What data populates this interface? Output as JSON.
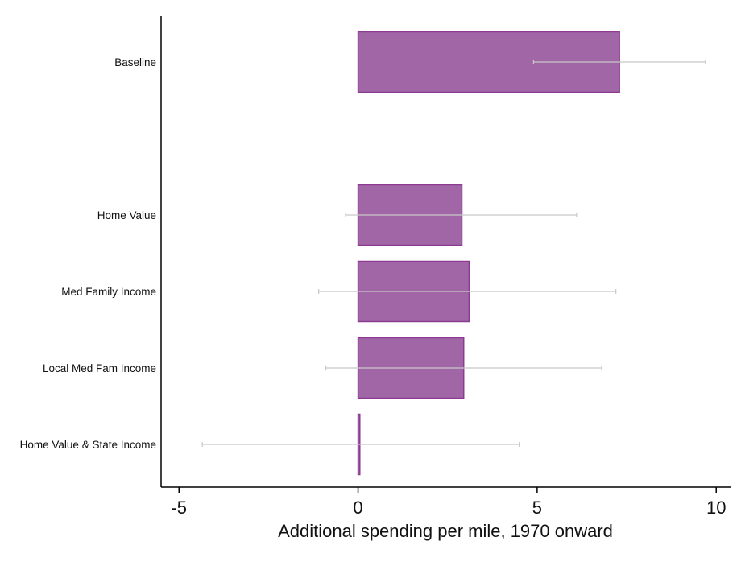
{
  "chart_data": {
    "type": "bar",
    "orientation": "horizontal",
    "title": "",
    "xlabel": "Additional spending per mile, 1970 onward",
    "ylabel": "",
    "xlim": [
      -5.5,
      10.4
    ],
    "xticks": [
      -5,
      0,
      5,
      10
    ],
    "xtick_labels": [
      "-5",
      "0",
      "5",
      "10"
    ],
    "grid": false,
    "legend": "none",
    "bar_color": "#a066a6",
    "bar_edge_color": "#8d3a93",
    "error_bar_color": "#c8c8c8",
    "categories": [
      "Baseline",
      "Home Value",
      "Med Family Income",
      "Local Med Fam Income",
      "Home Value & State Income"
    ],
    "category_positions": [
      5,
      3,
      2,
      1,
      0
    ],
    "values": [
      7.3,
      2.9,
      3.1,
      2.95,
      0.05
    ],
    "ci_low": [
      4.9,
      -0.35,
      -1.1,
      -0.9,
      -4.35
    ],
    "ci_high": [
      9.7,
      6.1,
      7.2,
      6.8,
      4.5
    ]
  }
}
